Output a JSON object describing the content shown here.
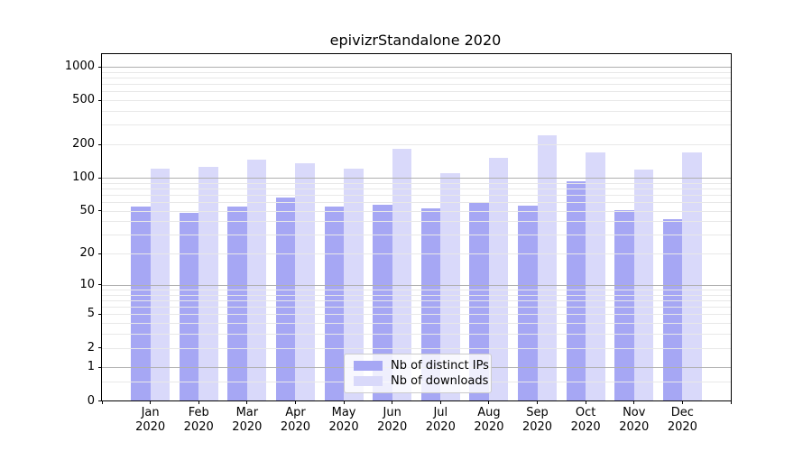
{
  "chart_data": {
    "type": "bar",
    "title": "epivizrStandalone 2020",
    "categories": [
      "Jan",
      "Feb",
      "Mar",
      "Apr",
      "May",
      "Jun",
      "Jul",
      "Aug",
      "Sep",
      "Oct",
      "Nov",
      "Dec"
    ],
    "category_year": "2020",
    "series": [
      {
        "name": "Nb of distinct IPs",
        "color": "#a6a7f4",
        "values": [
          55,
          48,
          55,
          66,
          55,
          57,
          53,
          60,
          56,
          93,
          51,
          42
        ]
      },
      {
        "name": "Nb of downloads",
        "color": "#d9d9fa",
        "values": [
          120,
          126,
          146,
          136,
          121,
          182,
          111,
          150,
          240,
          170,
          118,
          171
        ]
      }
    ],
    "y_axis": {
      "scale": "log1p",
      "ticks": [
        0,
        1,
        2,
        5,
        10,
        20,
        50,
        100,
        200,
        500,
        1000
      ],
      "major_gridlines": [
        1,
        10,
        100,
        1000
      ],
      "minor_gridlines": [
        0.5,
        2,
        3,
        4,
        5,
        6,
        7,
        8,
        9,
        20,
        30,
        40,
        50,
        60,
        70,
        80,
        90,
        200,
        300,
        400,
        500,
        600,
        700,
        800,
        900
      ],
      "ylim": [
        0,
        1300
      ]
    },
    "x_axis": {
      "tick_positions_range": [
        -1,
        12
      ]
    },
    "legend": {
      "position": "lower-center"
    },
    "grid": true,
    "colors": {
      "major_grid": "#b0b0b0",
      "minor_grid": "#e8e8e8",
      "axis": "#000000",
      "background": "#ffffff"
    }
  }
}
